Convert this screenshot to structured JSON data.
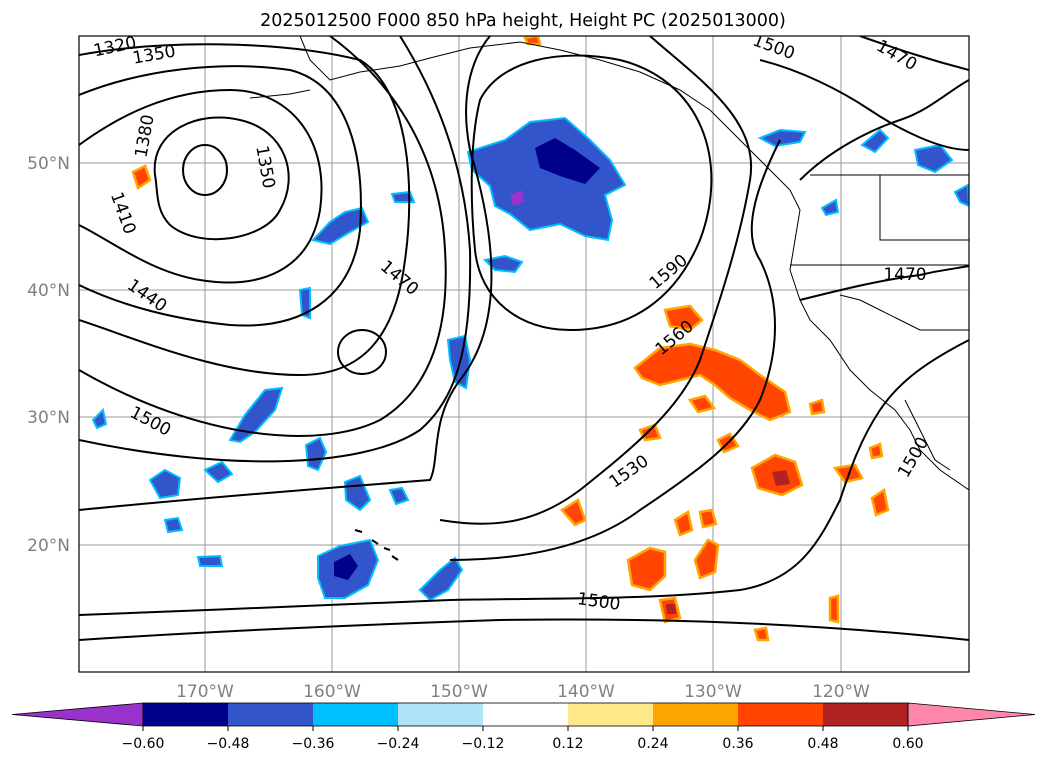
{
  "title": "2025012500 F000 850 hPa height, Height PC (2025013000)",
  "map": {
    "lat_labels": [
      "50°N",
      "40°N",
      "30°N",
      "20°N"
    ],
    "lon_labels": [
      "170°W",
      "160°W",
      "150°W",
      "140°W",
      "130°W",
      "120°W"
    ],
    "contour_labels": [
      "1320",
      "1350",
      "1380",
      "1350",
      "1410",
      "1440",
      "1470",
      "1500",
      "1590",
      "1560",
      "1530",
      "1500",
      "1500",
      "1470",
      "1500",
      "1470"
    ]
  },
  "colorbar": {
    "ticks": [
      "−0.60",
      "−0.48",
      "−0.36",
      "−0.24",
      "−0.12",
      "0.12",
      "0.24",
      "0.36",
      "0.48",
      "0.60"
    ],
    "colors": [
      "#9933cc",
      "#00008b",
      "#3355cc",
      "#00bfff",
      "#aee3f8",
      "#ffffff",
      "#ffe78a",
      "#ffa500",
      "#ff4500",
      "#b22222",
      "#ff88aa"
    ]
  },
  "colors": {
    "negative": [
      "#9933cc",
      "#00008b",
      "#3355cc",
      "#00bfff",
      "#aee3f8"
    ],
    "positive": [
      "#ffe78a",
      "#ffa500",
      "#ff4500",
      "#b22222"
    ],
    "contour": "#000000",
    "grid": "#999999"
  }
}
